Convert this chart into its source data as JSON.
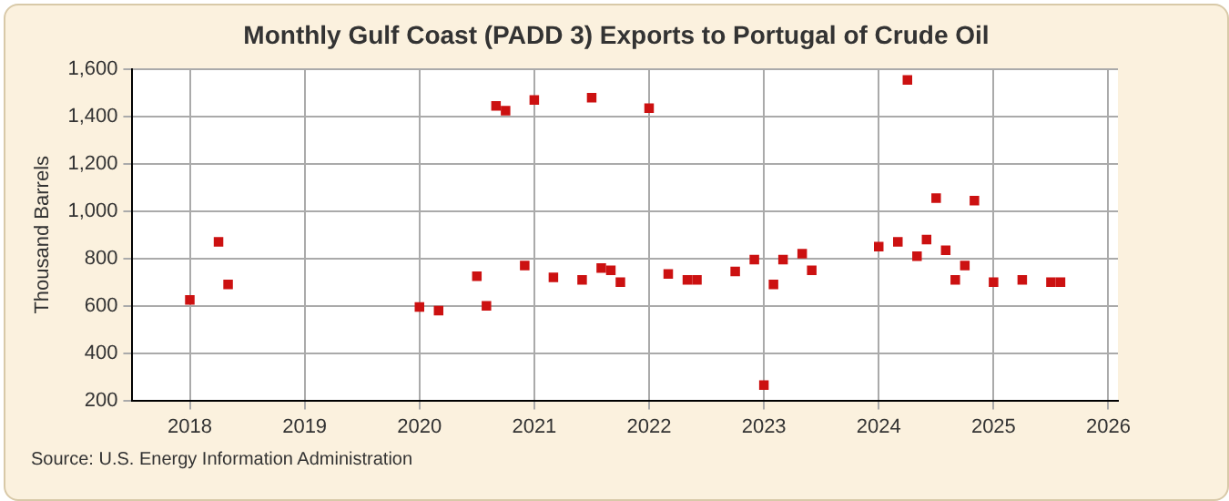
{
  "chart_data": {
    "type": "scatter",
    "title": "Monthly Gulf Coast (PADD 3) Exports to Portugal of Crude Oil",
    "ylabel": "Thousand Barrels",
    "annotations": [
      "Source: U.S. Energy Information Administration"
    ],
    "x": [
      "2018-01",
      "2018-04",
      "2018-05",
      "2020-01",
      "2020-03",
      "2020-07",
      "2020-08",
      "2020-09",
      "2020-10",
      "2020-12",
      "2021-01",
      "2021-03",
      "2021-06",
      "2021-07",
      "2021-08",
      "2021-09",
      "2021-10",
      "2022-01",
      "2022-03",
      "2022-05",
      "2022-06",
      "2022-10",
      "2022-12",
      "2023-01",
      "2023-02",
      "2023-03",
      "2023-05",
      "2023-06",
      "2024-01",
      "2024-03",
      "2024-04",
      "2024-05",
      "2024-06",
      "2024-07",
      "2024-08",
      "2024-09",
      "2024-10",
      "2024-11",
      "2025-01",
      "2025-04",
      "2025-07",
      "2025-08"
    ],
    "series": [
      {
        "color": "#cc1111",
        "values": [
          625,
          870,
          690,
          595,
          580,
          725,
          600,
          1445,
          1425,
          770,
          1470,
          720,
          710,
          1480,
          760,
          750,
          700,
          1435,
          735,
          710,
          710,
          745,
          795,
          265,
          690,
          795,
          820,
          750,
          850,
          870,
          1555,
          810,
          880,
          1055,
          835,
          710,
          770,
          1045,
          700,
          710,
          700,
          700
        ]
      }
    ],
    "xlim": [
      "2017-07",
      "2026-02"
    ],
    "xticks": [
      {
        "value": "2018",
        "label": "2018"
      },
      {
        "value": "2019",
        "label": "2019"
      },
      {
        "value": "2020",
        "label": "2020"
      },
      {
        "value": "2021",
        "label": "2021"
      },
      {
        "value": "2022",
        "label": "2022"
      },
      {
        "value": "2023",
        "label": "2023"
      },
      {
        "value": "2024",
        "label": "2024"
      },
      {
        "value": "2025",
        "label": "2025"
      },
      {
        "value": "2026",
        "label": "2026"
      }
    ],
    "ylim": [
      200,
      1600
    ],
    "yticks": [
      200,
      400,
      600,
      800,
      {
        "value": 1000,
        "label": "1,000"
      },
      {
        "value": 1200,
        "label": "1,200"
      },
      {
        "value": 1400,
        "label": "1,400"
      },
      {
        "value": 1600,
        "label": "1,600"
      }
    ],
    "grid": true,
    "marker": "square",
    "legend": false
  }
}
